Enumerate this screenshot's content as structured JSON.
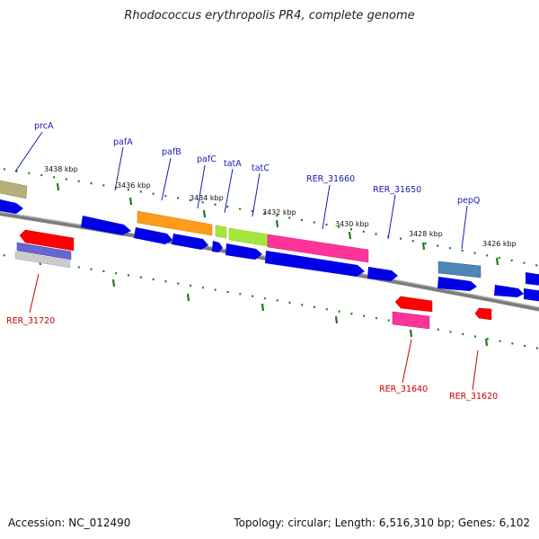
{
  "title": "Rhodococcus erythropolis PR4, complete genome",
  "footer": {
    "accession": "Accession: NC_012490",
    "summary": "Topology: circular; Length: 6,516,310 bp; Genes: 6,102"
  },
  "colors": {
    "backbone": "#8a8a8a",
    "tick": "#1d7a1d",
    "label_top": "#1a1ab3",
    "label_bottom": "#cc0000"
  },
  "scale_ticks": [
    "3438 kbp",
    "3436 kbp",
    "3434 kbp",
    "3432 kbp",
    "3430 kbp",
    "3428 kbp",
    "3426 kbp"
  ],
  "gene_labels_top": [
    "prcA",
    "pafA",
    "pafB",
    "pafC",
    "tatA",
    "tatC",
    "RER_31660",
    "RER_31650",
    "pepQ"
  ],
  "gene_labels_bottom": [
    "RER_31720",
    "RER_31640",
    "RER_31620"
  ],
  "feature_colors": [
    "blue",
    "olive",
    "orange",
    "light-green",
    "magenta",
    "steel-blue",
    "red",
    "purple",
    "grey",
    "pink"
  ]
}
